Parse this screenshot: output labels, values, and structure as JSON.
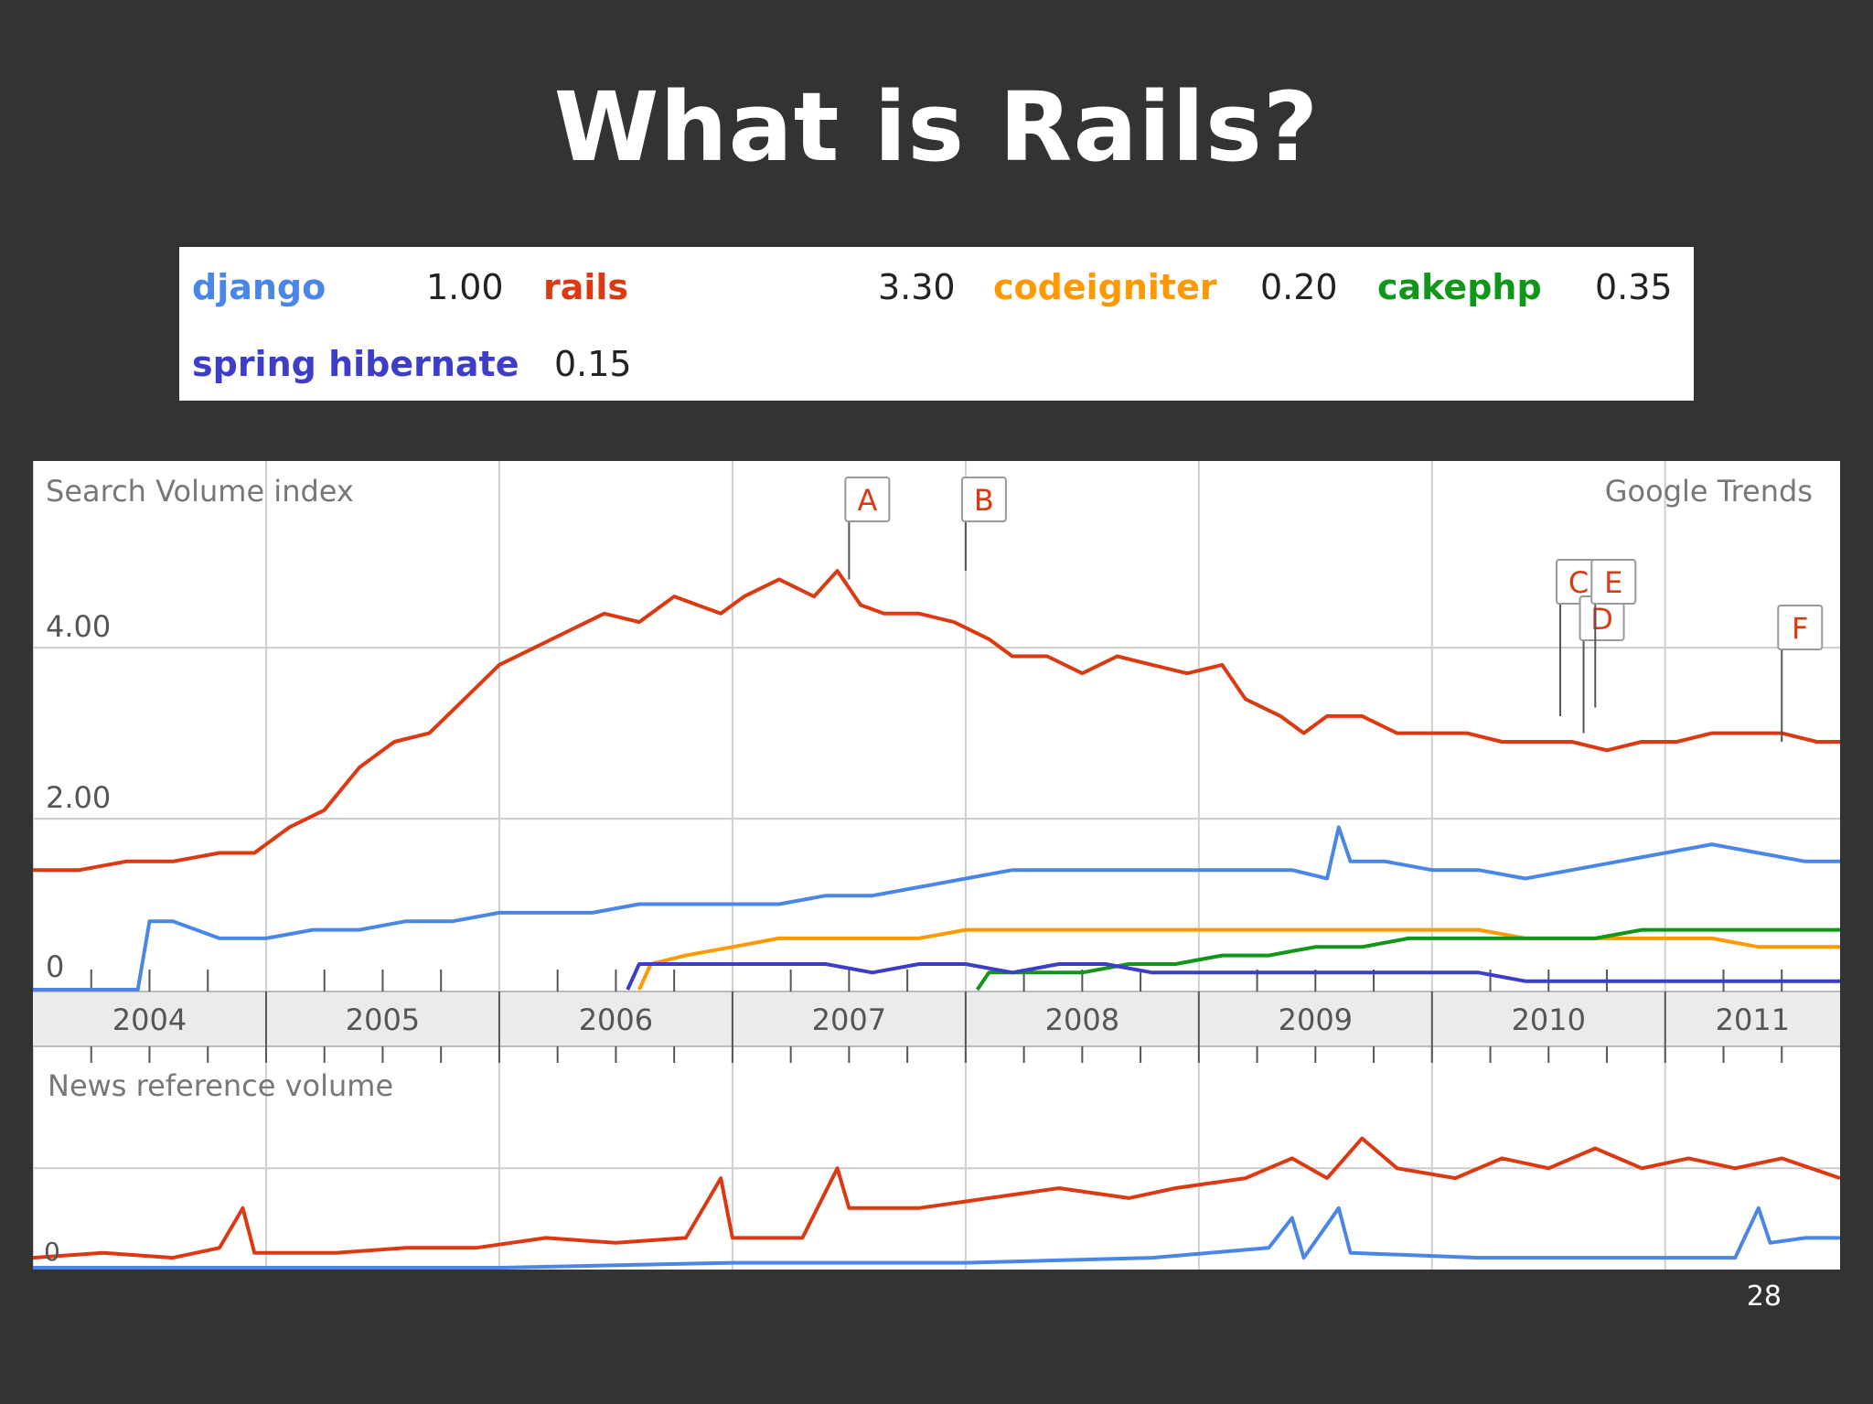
{
  "slide": {
    "title": "What is Rails?",
    "page_number": "28"
  },
  "legend": [
    {
      "name": "django",
      "value": "1.00",
      "color": "#4a86e8"
    },
    {
      "name": "rails",
      "value": "3.30",
      "color": "#dc3912"
    },
    {
      "name": "codeigniter",
      "value": "0.20",
      "color": "#ff9900"
    },
    {
      "name": "cakephp",
      "value": "0.35",
      "color": "#109618"
    },
    {
      "name": "spring hibernate",
      "value": "0.15",
      "color": "#3d3dc9"
    }
  ],
  "chart_data": {
    "type": "line",
    "source": "Google Trends",
    "search_panel": {
      "title": "Search Volume index",
      "y_ticks": [
        "4.00",
        "2.00",
        "0"
      ],
      "ylim": [
        0,
        5.5
      ],
      "x_years": [
        "2004",
        "2005",
        "2006",
        "2007",
        "2008",
        "2009",
        "2010",
        "2011"
      ],
      "xlim": [
        2004,
        2011.75
      ],
      "series": [
        {
          "name": "rails",
          "color": "#dc3912",
          "points": [
            [
              2004.0,
              1.4
            ],
            [
              2004.2,
              1.4
            ],
            [
              2004.4,
              1.5
            ],
            [
              2004.6,
              1.5
            ],
            [
              2004.8,
              1.6
            ],
            [
              2004.95,
              1.6
            ],
            [
              2005.1,
              1.9
            ],
            [
              2005.25,
              2.1
            ],
            [
              2005.4,
              2.6
            ],
            [
              2005.55,
              2.9
            ],
            [
              2005.7,
              3.0
            ],
            [
              2005.85,
              3.4
            ],
            [
              2006.0,
              3.8
            ],
            [
              2006.15,
              4.0
            ],
            [
              2006.3,
              4.2
            ],
            [
              2006.45,
              4.4
            ],
            [
              2006.6,
              4.3
            ],
            [
              2006.75,
              4.6
            ],
            [
              2006.95,
              4.4
            ],
            [
              2007.05,
              4.6
            ],
            [
              2007.2,
              4.8
            ],
            [
              2007.35,
              4.6
            ],
            [
              2007.45,
              4.9
            ],
            [
              2007.55,
              4.5
            ],
            [
              2007.65,
              4.4
            ],
            [
              2007.8,
              4.4
            ],
            [
              2007.95,
              4.3
            ],
            [
              2008.1,
              4.1
            ],
            [
              2008.2,
              3.9
            ],
            [
              2008.35,
              3.9
            ],
            [
              2008.5,
              3.7
            ],
            [
              2008.65,
              3.9
            ],
            [
              2008.8,
              3.8
            ],
            [
              2008.95,
              3.7
            ],
            [
              2009.1,
              3.8
            ],
            [
              2009.2,
              3.4
            ],
            [
              2009.35,
              3.2
            ],
            [
              2009.45,
              3.0
            ],
            [
              2009.55,
              3.2
            ],
            [
              2009.7,
              3.2
            ],
            [
              2009.85,
              3.0
            ],
            [
              2010.0,
              3.0
            ],
            [
              2010.15,
              3.0
            ],
            [
              2010.3,
              2.9
            ],
            [
              2010.45,
              2.9
            ],
            [
              2010.6,
              2.9
            ],
            [
              2010.75,
              2.8
            ],
            [
              2010.9,
              2.9
            ],
            [
              2011.05,
              2.9
            ],
            [
              2011.2,
              3.0
            ],
            [
              2011.35,
              3.0
            ],
            [
              2011.5,
              3.0
            ],
            [
              2011.65,
              2.9
            ],
            [
              2011.75,
              2.9
            ]
          ]
        },
        {
          "name": "django",
          "color": "#4a86e8",
          "points": [
            [
              2004.0,
              0.0
            ],
            [
              2004.2,
              0.0
            ],
            [
              2004.35,
              0.0
            ],
            [
              2004.45,
              0.0
            ],
            [
              2004.5,
              0.8
            ],
            [
              2004.6,
              0.8
            ],
            [
              2004.8,
              0.6
            ],
            [
              2005.0,
              0.6
            ],
            [
              2005.2,
              0.7
            ],
            [
              2005.4,
              0.7
            ],
            [
              2005.6,
              0.8
            ],
            [
              2005.8,
              0.8
            ],
            [
              2006.0,
              0.9
            ],
            [
              2006.2,
              0.9
            ],
            [
              2006.4,
              0.9
            ],
            [
              2006.6,
              1.0
            ],
            [
              2006.8,
              1.0
            ],
            [
              2007.0,
              1.0
            ],
            [
              2007.2,
              1.0
            ],
            [
              2007.4,
              1.1
            ],
            [
              2007.6,
              1.1
            ],
            [
              2007.8,
              1.2
            ],
            [
              2008.0,
              1.3
            ],
            [
              2008.2,
              1.4
            ],
            [
              2008.4,
              1.4
            ],
            [
              2008.6,
              1.4
            ],
            [
              2008.8,
              1.4
            ],
            [
              2009.0,
              1.4
            ],
            [
              2009.2,
              1.4
            ],
            [
              2009.4,
              1.4
            ],
            [
              2009.55,
              1.3
            ],
            [
              2009.6,
              1.9
            ],
            [
              2009.65,
              1.5
            ],
            [
              2009.8,
              1.5
            ],
            [
              2010.0,
              1.4
            ],
            [
              2010.2,
              1.4
            ],
            [
              2010.4,
              1.3
            ],
            [
              2010.6,
              1.4
            ],
            [
              2010.8,
              1.5
            ],
            [
              2011.0,
              1.6
            ],
            [
              2011.2,
              1.7
            ],
            [
              2011.4,
              1.6
            ],
            [
              2011.6,
              1.5
            ],
            [
              2011.75,
              1.5
            ]
          ]
        },
        {
          "name": "codeigniter",
          "color": "#ff9900",
          "points": [
            [
              2006.6,
              0.0
            ],
            [
              2006.65,
              0.3
            ],
            [
              2006.8,
              0.4
            ],
            [
              2007.0,
              0.5
            ],
            [
              2007.2,
              0.6
            ],
            [
              2007.4,
              0.6
            ],
            [
              2007.6,
              0.6
            ],
            [
              2007.8,
              0.6
            ],
            [
              2008.0,
              0.7
            ],
            [
              2008.2,
              0.7
            ],
            [
              2008.4,
              0.7
            ],
            [
              2008.6,
              0.7
            ],
            [
              2008.8,
              0.7
            ],
            [
              2009.0,
              0.7
            ],
            [
              2009.2,
              0.7
            ],
            [
              2009.4,
              0.7
            ],
            [
              2009.6,
              0.7
            ],
            [
              2009.8,
              0.7
            ],
            [
              2010.0,
              0.7
            ],
            [
              2010.2,
              0.7
            ],
            [
              2010.4,
              0.6
            ],
            [
              2010.6,
              0.6
            ],
            [
              2010.8,
              0.6
            ],
            [
              2011.0,
              0.6
            ],
            [
              2011.2,
              0.6
            ],
            [
              2011.4,
              0.5
            ],
            [
              2011.6,
              0.5
            ],
            [
              2011.75,
              0.5
            ]
          ]
        },
        {
          "name": "cakephp",
          "color": "#109618",
          "points": [
            [
              2008.05,
              0.0
            ],
            [
              2008.1,
              0.2
            ],
            [
              2008.3,
              0.2
            ],
            [
              2008.5,
              0.2
            ],
            [
              2008.7,
              0.3
            ],
            [
              2008.9,
              0.3
            ],
            [
              2009.1,
              0.4
            ],
            [
              2009.3,
              0.4
            ],
            [
              2009.5,
              0.5
            ],
            [
              2009.7,
              0.5
            ],
            [
              2009.9,
              0.6
            ],
            [
              2010.1,
              0.6
            ],
            [
              2010.3,
              0.6
            ],
            [
              2010.5,
              0.6
            ],
            [
              2010.7,
              0.6
            ],
            [
              2010.9,
              0.7
            ],
            [
              2011.1,
              0.7
            ],
            [
              2011.3,
              0.7
            ],
            [
              2011.5,
              0.7
            ],
            [
              2011.75,
              0.7
            ]
          ]
        },
        {
          "name": "spring hibernate",
          "color": "#3d3dc9",
          "points": [
            [
              2006.55,
              0.0
            ],
            [
              2006.6,
              0.3
            ],
            [
              2006.8,
              0.3
            ],
            [
              2007.0,
              0.3
            ],
            [
              2007.2,
              0.3
            ],
            [
              2007.4,
              0.3
            ],
            [
              2007.6,
              0.2
            ],
            [
              2007.8,
              0.3
            ],
            [
              2008.0,
              0.3
            ],
            [
              2008.2,
              0.2
            ],
            [
              2008.4,
              0.3
            ],
            [
              2008.6,
              0.3
            ],
            [
              2008.8,
              0.2
            ],
            [
              2009.0,
              0.2
            ],
            [
              2009.2,
              0.2
            ],
            [
              2009.4,
              0.2
            ],
            [
              2009.6,
              0.2
            ],
            [
              2009.8,
              0.2
            ],
            [
              2010.0,
              0.2
            ],
            [
              2010.2,
              0.2
            ],
            [
              2010.4,
              0.1
            ],
            [
              2010.6,
              0.1
            ],
            [
              2010.8,
              0.1
            ],
            [
              2011.0,
              0.1
            ],
            [
              2011.2,
              0.1
            ],
            [
              2011.4,
              0.1
            ],
            [
              2011.6,
              0.1
            ],
            [
              2011.75,
              0.1
            ]
          ]
        }
      ],
      "annotations": [
        {
          "label": "A",
          "x": 2007.5,
          "y": 4.8
        },
        {
          "label": "B",
          "x": 2008.0,
          "y": 4.9
        },
        {
          "label": "C",
          "x": 2010.55,
          "y": 3.2
        },
        {
          "label": "D",
          "x": 2010.65,
          "y": 3.0
        },
        {
          "label": "E",
          "x": 2010.7,
          "y": 3.3
        },
        {
          "label": "F",
          "x": 2011.5,
          "y": 2.9
        }
      ]
    },
    "news_panel": {
      "title": "News reference volume",
      "y_ticks": [
        "0"
      ],
      "ylim": [
        0,
        1.6
      ],
      "series": [
        {
          "name": "rails",
          "color": "#dc3912",
          "points": [
            [
              2004.0,
              0.1
            ],
            [
              2004.3,
              0.15
            ],
            [
              2004.6,
              0.1
            ],
            [
              2004.8,
              0.2
            ],
            [
              2004.9,
              0.6
            ],
            [
              2004.95,
              0.15
            ],
            [
              2005.3,
              0.15
            ],
            [
              2005.6,
              0.2
            ],
            [
              2005.9,
              0.2
            ],
            [
              2006.2,
              0.3
            ],
            [
              2006.5,
              0.25
            ],
            [
              2006.8,
              0.3
            ],
            [
              2006.95,
              0.9
            ],
            [
              2007.0,
              0.3
            ],
            [
              2007.3,
              0.3
            ],
            [
              2007.45,
              1.0
            ],
            [
              2007.5,
              0.6
            ],
            [
              2007.8,
              0.6
            ],
            [
              2008.1,
              0.7
            ],
            [
              2008.4,
              0.8
            ],
            [
              2008.7,
              0.7
            ],
            [
              2008.9,
              0.8
            ],
            [
              2009.2,
              0.9
            ],
            [
              2009.4,
              1.1
            ],
            [
              2009.55,
              0.9
            ],
            [
              2009.7,
              1.3
            ],
            [
              2009.85,
              1.0
            ],
            [
              2010.1,
              0.9
            ],
            [
              2010.3,
              1.1
            ],
            [
              2010.5,
              1.0
            ],
            [
              2010.7,
              1.2
            ],
            [
              2010.9,
              1.0
            ],
            [
              2011.1,
              1.1
            ],
            [
              2011.3,
              1.0
            ],
            [
              2011.5,
              1.1
            ],
            [
              2011.75,
              0.9
            ]
          ]
        },
        {
          "name": "django",
          "color": "#4a86e8",
          "points": [
            [
              2004.0,
              0.0
            ],
            [
              2005.0,
              0.0
            ],
            [
              2006.0,
              0.0
            ],
            [
              2007.0,
              0.05
            ],
            [
              2008.0,
              0.05
            ],
            [
              2008.8,
              0.1
            ],
            [
              2009.3,
              0.2
            ],
            [
              2009.4,
              0.5
            ],
            [
              2009.45,
              0.1
            ],
            [
              2009.6,
              0.6
            ],
            [
              2009.65,
              0.15
            ],
            [
              2010.2,
              0.1
            ],
            [
              2010.8,
              0.1
            ],
            [
              2011.3,
              0.1
            ],
            [
              2011.4,
              0.6
            ],
            [
              2011.45,
              0.25
            ],
            [
              2011.6,
              0.3
            ],
            [
              2011.75,
              0.3
            ]
          ]
        }
      ]
    },
    "x_axis": {
      "labels": [
        "2004",
        "2005",
        "2006",
        "2007",
        "2008",
        "2009",
        "2010",
        "2011"
      ]
    }
  }
}
